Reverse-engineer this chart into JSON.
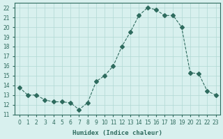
{
  "x": [
    0,
    1,
    2,
    3,
    4,
    5,
    6,
    7,
    8,
    9,
    10,
    11,
    12,
    13,
    14,
    15,
    16,
    17,
    18,
    19,
    20,
    21,
    22,
    23
  ],
  "y": [
    13.8,
    13.0,
    13.0,
    12.5,
    12.3,
    12.3,
    12.2,
    11.5,
    12.2,
    14.4,
    15.0,
    16.0,
    18.0,
    19.5,
    21.2,
    22.0,
    21.8,
    21.2,
    21.2,
    20.0,
    15.3,
    15.2,
    13.4,
    13.0
  ],
  "xlim": [
    -0.5,
    23.5
  ],
  "ylim": [
    11,
    22.5
  ],
  "yticks": [
    11,
    12,
    13,
    14,
    15,
    16,
    17,
    18,
    19,
    20,
    21,
    22
  ],
  "xticks": [
    0,
    1,
    2,
    3,
    4,
    5,
    6,
    7,
    8,
    9,
    10,
    11,
    12,
    13,
    14,
    15,
    16,
    17,
    18,
    19,
    20,
    21,
    22,
    23
  ],
  "xlabel": "Humidex (Indice chaleur)",
  "line_color": "#2e6b5e",
  "marker": "D",
  "marker_size": 3,
  "line_width": 0.8,
  "bg_color": "#d8f0ee",
  "grid_color": "#b0d8d4"
}
